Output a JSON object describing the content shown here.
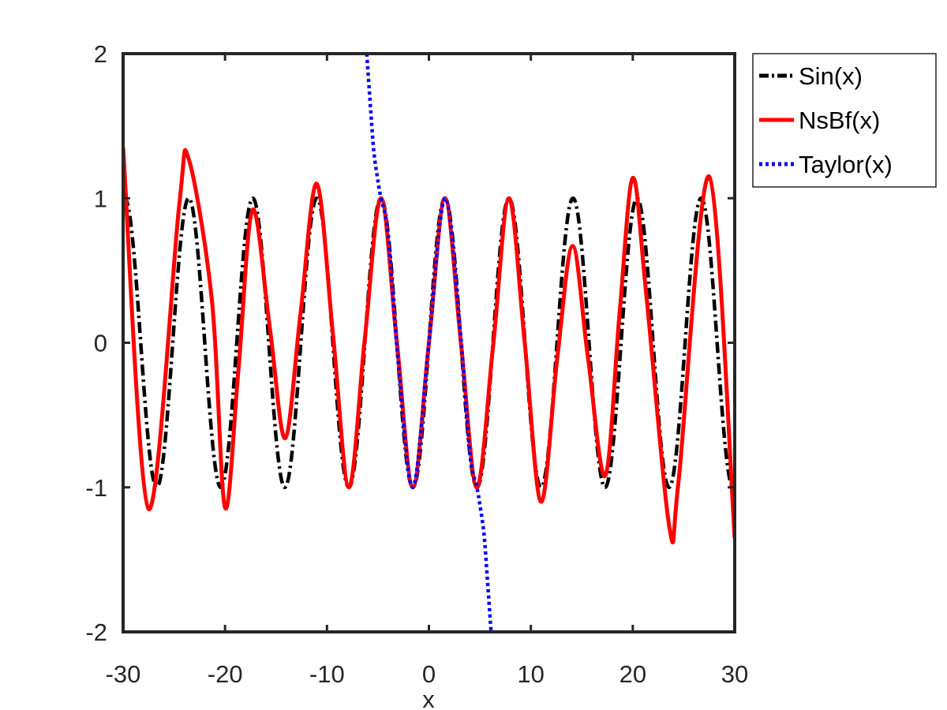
{
  "chart_data": {
    "type": "line",
    "xlabel": "x",
    "ylabel": "",
    "xlim": [
      -30,
      30
    ],
    "ylim": [
      -2,
      2
    ],
    "xticks": [
      -30,
      -20,
      -10,
      0,
      10,
      20,
      30
    ],
    "xtick_labels": [
      "-30",
      "-20",
      "-10",
      "0",
      "10",
      "20",
      "30"
    ],
    "yticks": [
      -2,
      -1,
      0,
      1,
      2
    ],
    "ytick_labels": [
      "-2",
      "-1",
      "0",
      "1",
      "2"
    ],
    "grid": false,
    "legend_position": "outside-top-right",
    "series": [
      {
        "name": "Sin(x)",
        "color": "#000000",
        "style": "dash-dot",
        "function": "sin",
        "x_range": [
          -30,
          30
        ]
      },
      {
        "name": "NsBf(x)",
        "color": "#ff0000",
        "style": "solid",
        "x": [
          -30,
          -27.5,
          -24.5,
          -23.6,
          -21.3,
          -20.0,
          -18.7,
          -17.3,
          -15.6,
          -14.1,
          -12.6,
          -11.0,
          -9.4,
          -7.85,
          -6.3,
          -4.7,
          -3.14,
          -1.57,
          0,
          1.57,
          3.14,
          4.7,
          6.3,
          7.85,
          9.4,
          11.0,
          12.6,
          14.1,
          15.6,
          17.3,
          18.7,
          20.0,
          21.3,
          23.6,
          24.5,
          27.5,
          30
        ],
        "y": [
          1.35,
          -1.15,
          0.95,
          1.28,
          0.3,
          -1.14,
          -0.2,
          0.92,
          0.1,
          -0.66,
          0.2,
          1.1,
          0.05,
          -1.0,
          0.02,
          1.0,
          0.0,
          -1.0,
          0.0,
          1.0,
          0.0,
          -1.0,
          -0.02,
          1.0,
          0.0,
          -1.1,
          -0.1,
          0.67,
          -0.1,
          -0.92,
          0.2,
          1.14,
          0.35,
          -1.28,
          -0.95,
          1.15,
          -1.35
        ]
      },
      {
        "name": "Taylor(x)",
        "color": "#0000ff",
        "style": "dotted",
        "x": [
          -6.1,
          -5.9,
          -5.7,
          -5.4,
          -5.0,
          -4.712,
          -4.0,
          -3.0,
          -1.571,
          0,
          1.571,
          3.0,
          4.0,
          4.712,
          5.0,
          5.4,
          5.7,
          5.9,
          6.1
        ],
        "y": [
          2.0,
          1.8,
          1.6,
          1.32,
          1.12,
          1.0,
          0.75,
          -0.14,
          -1.0,
          0,
          1.0,
          0.14,
          -0.75,
          -1.0,
          -1.12,
          -1.32,
          -1.6,
          -1.8,
          -2.0
        ]
      }
    ]
  }
}
